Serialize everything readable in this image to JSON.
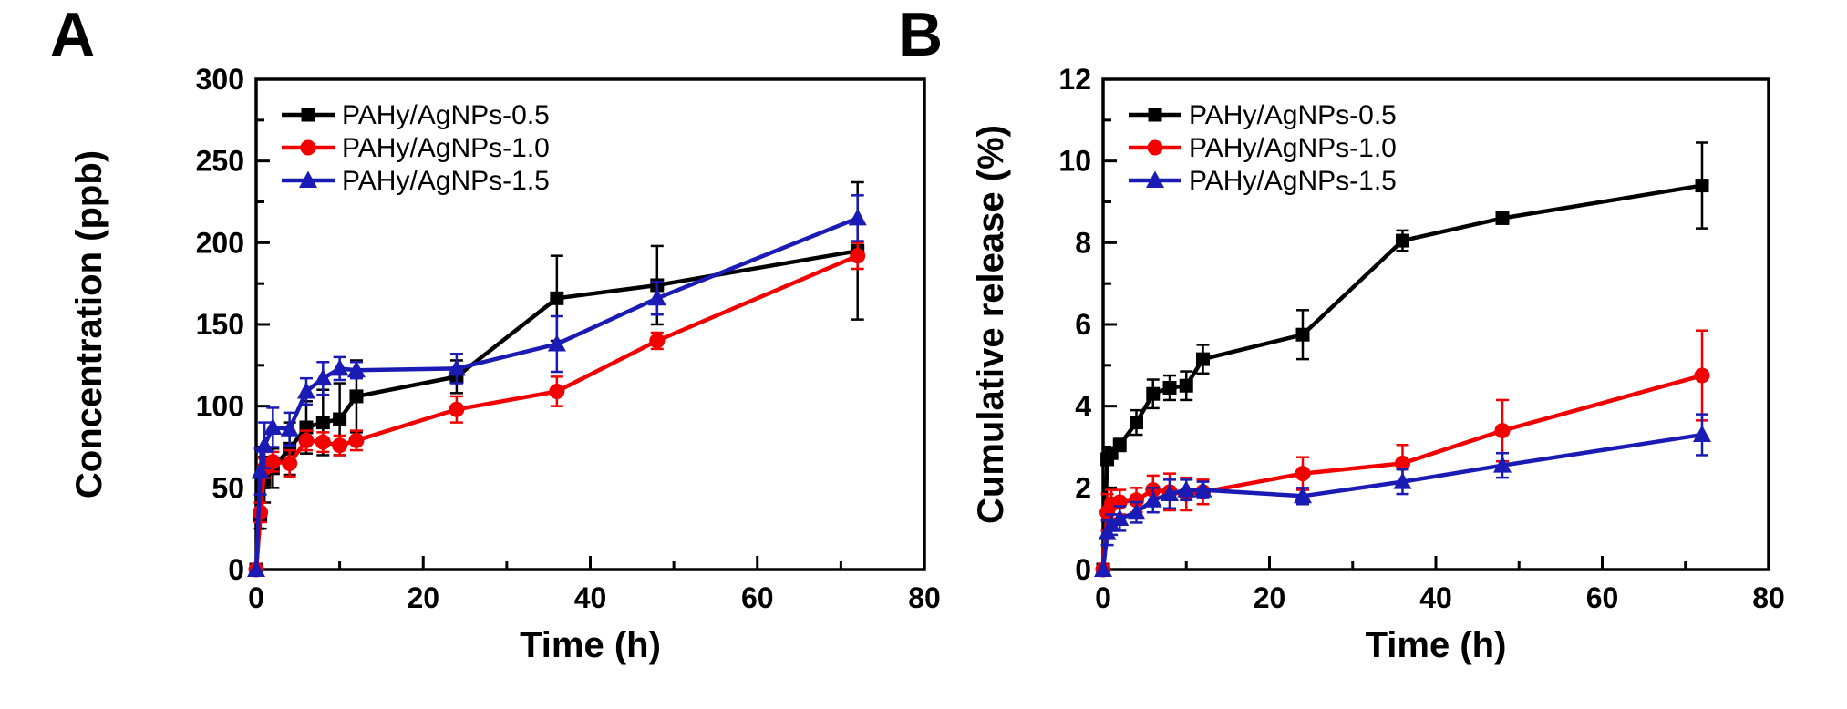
{
  "figure": {
    "background": "#ffffff",
    "text_color": "#000000"
  },
  "chart_data": [
    {
      "type": "line",
      "panel_label": "A",
      "xlabel": "Time (h)",
      "ylabel": "Concentration (ppb)",
      "xlim": [
        0,
        80
      ],
      "ylim": [
        0,
        300
      ],
      "x_major_ticks": [
        0,
        20,
        40,
        60,
        80
      ],
      "x_minor_step": 10,
      "y_major_ticks": [
        0,
        50,
        100,
        150,
        200,
        250,
        300
      ],
      "y_minor_step": 25,
      "grid": false,
      "legend_position": "top-left",
      "x": [
        0,
        0.5,
        1,
        2,
        4,
        6,
        8,
        10,
        12,
        24,
        36,
        48,
        72
      ],
      "series": [
        {
          "name": "PAHy/AgNPs-0.5",
          "color": "#000000",
          "marker": "square",
          "values": [
            0,
            33,
            55,
            62,
            74,
            87,
            90,
            92,
            106,
            118,
            166,
            174,
            195
          ],
          "errors": [
            0,
            8,
            14,
            12,
            16,
            16,
            20,
            22,
            22,
            10,
            26,
            24,
            42
          ]
        },
        {
          "name": "PAHy/AgNPs-1.0",
          "color": "#f20000",
          "marker": "circle",
          "values": [
            0,
            35,
            62,
            66,
            65,
            79,
            78,
            76,
            79,
            98,
            109,
            140,
            192
          ],
          "errors": [
            0,
            6,
            6,
            6,
            8,
            6,
            6,
            6,
            6,
            8,
            9,
            5,
            8
          ]
        },
        {
          "name": "PAHy/AgNPs-1.5",
          "color": "#1a1ab5",
          "marker": "triangle",
          "values": [
            0,
            60,
            76,
            87,
            86,
            109,
            117,
            123,
            122,
            123,
            138,
            166,
            215
          ],
          "errors": [
            0,
            14,
            14,
            12,
            10,
            8,
            10,
            7,
            5,
            9,
            17,
            10,
            14
          ]
        }
      ]
    },
    {
      "type": "line",
      "panel_label": "B",
      "xlabel": "Time (h)",
      "ylabel": "Cumulative release (%)",
      "xlim": [
        0,
        80
      ],
      "ylim": [
        0,
        12
      ],
      "x_major_ticks": [
        0,
        20,
        40,
        60,
        80
      ],
      "x_minor_step": 10,
      "y_major_ticks": [
        0,
        2,
        4,
        6,
        8,
        10,
        12
      ],
      "y_minor_step": 1,
      "grid": false,
      "legend_position": "top-left",
      "x": [
        0,
        0.5,
        1,
        2,
        4,
        6,
        8,
        10,
        12,
        24,
        36,
        48,
        72
      ],
      "series": [
        {
          "name": "PAHy/AgNPs-0.5",
          "color": "#000000",
          "marker": "square",
          "values": [
            0,
            2.7,
            2.85,
            3.05,
            3.6,
            4.3,
            4.45,
            4.5,
            5.15,
            5.75,
            8.05,
            8.6,
            9.4
          ],
          "errors": [
            0,
            0.12,
            0.12,
            0.15,
            0.3,
            0.35,
            0.3,
            0.35,
            0.35,
            0.6,
            0.25,
            0.12,
            1.05
          ]
        },
        {
          "name": "PAHy/AgNPs-1.0",
          "color": "#f20000",
          "marker": "circle",
          "values": [
            0,
            1.4,
            1.6,
            1.65,
            1.7,
            1.95,
            1.9,
            1.85,
            1.9,
            2.35,
            2.6,
            3.4,
            4.75
          ],
          "errors": [
            0,
            0.45,
            0.35,
            0.3,
            0.3,
            0.35,
            0.45,
            0.4,
            0.3,
            0.4,
            0.45,
            0.75,
            1.1
          ]
        },
        {
          "name": "PAHy/AgNPs-1.5",
          "color": "#1a1ab5",
          "marker": "triangle",
          "values": [
            0,
            0.9,
            1.1,
            1.25,
            1.4,
            1.7,
            1.85,
            1.95,
            1.95,
            1.8,
            2.15,
            2.55,
            3.3
          ],
          "errors": [
            0,
            0.3,
            0.25,
            0.3,
            0.25,
            0.3,
            0.35,
            0.25,
            0.2,
            0.2,
            0.3,
            0.3,
            0.5
          ]
        }
      ]
    }
  ]
}
